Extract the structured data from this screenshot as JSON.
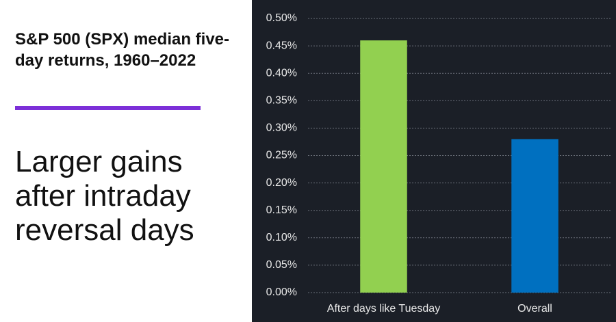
{
  "chart_data": {
    "type": "bar",
    "title": "S&P 500 (SPX) median five-day returns, 1960–2022",
    "subtitle": "Larger gains after intraday reversal days",
    "categories": [
      "After days like Tuesday",
      "Overall"
    ],
    "values": [
      0.46,
      0.28
    ],
    "colors": [
      "#92d050",
      "#0070c0"
    ],
    "ylim": [
      0,
      0.5
    ],
    "yticks": [
      {
        "value": 0,
        "label": "0.00%"
      },
      {
        "value": 0.05,
        "label": "0.05%"
      },
      {
        "value": 0.1,
        "label": "0.10%"
      },
      {
        "value": 0.15,
        "label": "0.15%"
      },
      {
        "value": 0.2,
        "label": "0.20%"
      },
      {
        "value": 0.25,
        "label": "0.25%"
      },
      {
        "value": 0.3,
        "label": "0.30%"
      },
      {
        "value": 0.35,
        "label": "0.35%"
      },
      {
        "value": 0.4,
        "label": "0.40%"
      },
      {
        "value": 0.45,
        "label": "0.45%"
      },
      {
        "value": 0.5,
        "label": "0.50%"
      }
    ],
    "grid": true
  }
}
